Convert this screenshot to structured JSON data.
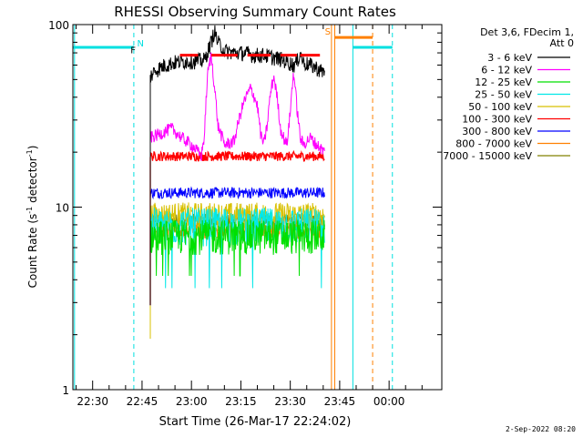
{
  "chart_data": {
    "type": "line",
    "title": "RHESSI Observing Summary Count Rates",
    "xlabel": "Start Time (26-Mar-17 22:24:02)",
    "ylabel_main": "Count Rate (s",
    "ylabel_sup": "-1",
    "ylabel_mid": " detector",
    "ylabel_sup2": "-1",
    "ylabel_end": ")",
    "yscale": "log",
    "ylim": [
      1,
      100
    ],
    "y_ticks": [
      1,
      10,
      100
    ],
    "y_tick_labels": [
      "1",
      "10",
      "100"
    ],
    "xlim_min": [
      -6,
      106
    ],
    "x_ticks_min": [
      0,
      15,
      30,
      45,
      60,
      75,
      90
    ],
    "x_tick_labels": [
      "22:30",
      "22:45",
      "23:00",
      "23:15",
      "23:30",
      "23:45",
      "00:00"
    ],
    "legend_header": [
      "Det 3,6, FDecim 1,",
      "Att 0"
    ],
    "series": [
      {
        "name": "3 - 6 keV",
        "color": "#000000",
        "level": 58,
        "noise": 0.1,
        "points": [
          [
            17.5,
            52
          ],
          [
            19,
            56
          ],
          [
            22,
            60
          ],
          [
            25,
            62
          ],
          [
            28,
            63
          ],
          [
            31,
            63
          ],
          [
            34,
            64
          ],
          [
            35,
            72
          ],
          [
            36,
            80
          ],
          [
            37,
            92
          ],
          [
            38,
            80
          ],
          [
            40,
            72
          ],
          [
            43,
            70
          ],
          [
            46,
            70
          ],
          [
            49,
            68
          ],
          [
            52,
            68
          ],
          [
            55,
            66
          ],
          [
            58,
            64
          ],
          [
            61,
            60
          ],
          [
            62,
            62
          ],
          [
            63,
            70
          ],
          [
            64,
            62
          ],
          [
            66,
            60
          ],
          [
            68,
            58
          ],
          [
            69,
            56
          ],
          [
            70.5,
            55
          ]
        ]
      },
      {
        "name": "6 - 12 keV",
        "color": "#ff00ff",
        "level": 22,
        "points": [
          [
            17.5,
            24
          ],
          [
            20,
            25
          ],
          [
            22,
            26
          ],
          [
            24,
            27
          ],
          [
            27,
            24
          ],
          [
            30,
            22
          ],
          [
            32,
            20
          ],
          [
            33,
            19
          ],
          [
            34,
            25
          ],
          [
            35,
            55
          ],
          [
            36,
            68
          ],
          [
            37,
            45
          ],
          [
            38,
            28
          ],
          [
            40,
            22
          ],
          [
            43,
            23
          ],
          [
            46,
            38
          ],
          [
            48,
            45
          ],
          [
            50,
            36
          ],
          [
            51,
            25
          ],
          [
            52,
            22
          ],
          [
            53,
            28
          ],
          [
            54,
            42
          ],
          [
            55,
            52
          ],
          [
            56,
            40
          ],
          [
            57,
            27
          ],
          [
            58,
            24
          ],
          [
            59,
            22
          ],
          [
            60,
            33
          ],
          [
            61,
            55
          ],
          [
            62,
            35
          ],
          [
            63,
            24
          ],
          [
            64,
            22
          ],
          [
            66,
            24
          ],
          [
            68,
            22
          ],
          [
            70.5,
            20
          ]
        ]
      },
      {
        "name": "12 - 25 keV",
        "color": "#00e000",
        "level": 7,
        "noise": 0.22
      },
      {
        "name": "25 - 50 keV",
        "color": "#00e8e8",
        "level": 8,
        "noise": 0.24
      },
      {
        "name": "50 - 100 keV",
        "color": "#d8c000",
        "level": 9,
        "noise": 0.18
      },
      {
        "name": "100 - 300 keV",
        "color": "#ff0000",
        "level": 19,
        "noise": 0.06
      },
      {
        "name": "300 - 800 keV",
        "color": "#0000ff",
        "level": 12,
        "noise": 0.07
      },
      {
        "name": "800 - 7000 keV",
        "color": "#ff8000",
        "level": 7.5,
        "noise": 0.1
      },
      {
        "name": "7000 - 15000 keV",
        "color": "#808000",
        "level": 8.5,
        "noise": 0.08
      }
    ],
    "data_start_min": 17.5,
    "data_end_min": 70.5,
    "night_segments": [
      [
        -6,
        12.5
      ],
      [
        79,
        91
      ]
    ],
    "night_color": "#00e0e0",
    "night_level": 75,
    "flag_label_N": "N",
    "flag_label_F": "F",
    "flag_label_S": "S",
    "saa_segment": [
      73.5,
      85
    ],
    "saa_color": "#ff8000",
    "saa_level": 85,
    "flare_segments": [
      [
        26.5,
        32
      ],
      [
        36,
        44
      ],
      [
        47,
        54
      ],
      [
        57,
        62
      ],
      [
        63,
        69
      ]
    ],
    "flare_color": "#ff0000",
    "flare_level": 68,
    "vlines": [
      {
        "x": -5.5,
        "color": "#00e0e0",
        "dash": false
      },
      {
        "x": 12.5,
        "color": "#00e0e0",
        "dash": true
      },
      {
        "x": 72.5,
        "color": "#ff8000",
        "dash": false
      },
      {
        "x": 73.5,
        "color": "#ff8000",
        "dash": false
      },
      {
        "x": 79,
        "color": "#00e0e0",
        "dash": false
      },
      {
        "x": 85,
        "color": "#ff8000",
        "dash": true
      },
      {
        "x": 91,
        "color": "#00e0e0",
        "dash": true
      }
    ],
    "footer_stamp": "2-Sep-2022 08:20"
  }
}
